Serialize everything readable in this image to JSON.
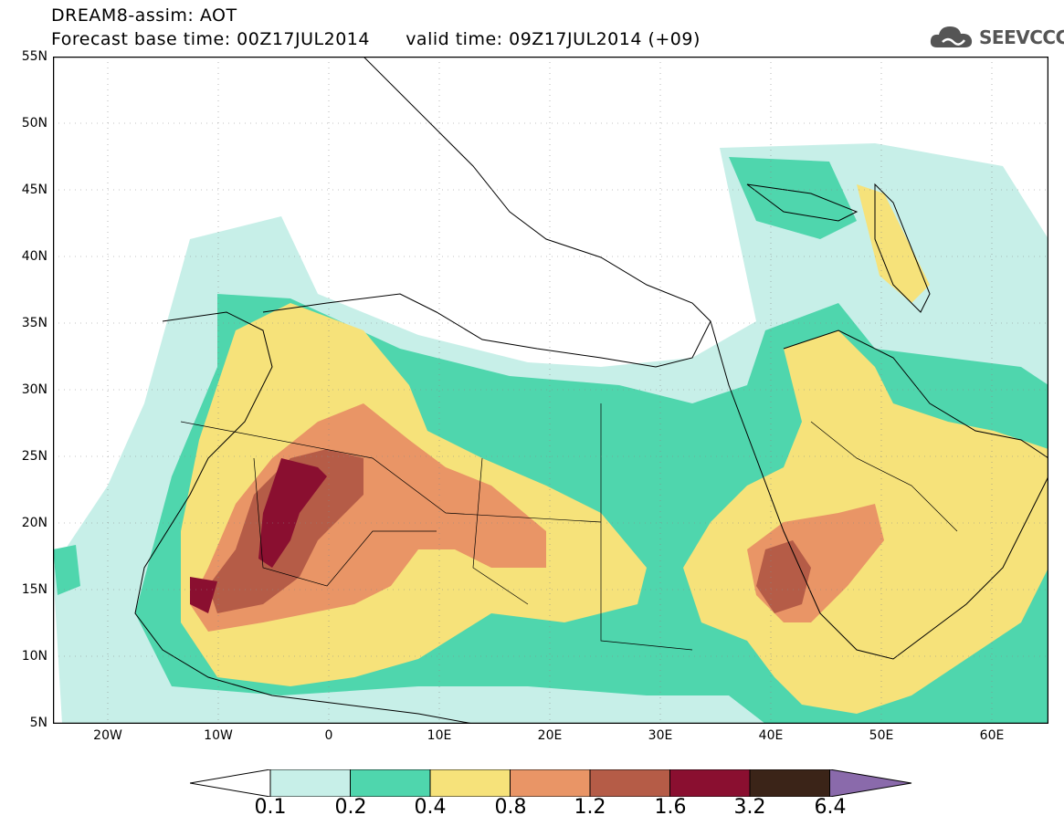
{
  "title": {
    "line1": "DREAM8-assim: AOT",
    "line2": "Forecast base time: 00Z17JUL2014      valid time: 09Z17JUL2014 (+09)"
  },
  "logo": {
    "text": "SEEVCCC",
    "icon": "cloud-icon"
  },
  "map": {
    "lon_range": [
      -25,
      65
    ],
    "lat_range": [
      5,
      55
    ],
    "lat_labels": [
      "55N",
      "50N",
      "45N",
      "40N",
      "35N",
      "30N",
      "25N",
      "20N",
      "15N",
      "10N",
      "5N"
    ],
    "lon_labels": [
      "20W",
      "10W",
      "0",
      "10E",
      "20E",
      "30E",
      "40E",
      "50E",
      "60E"
    ]
  },
  "colorbar": {
    "levels": [
      "0.1",
      "0.2",
      "0.4",
      "0.8",
      "1.2",
      "1.6",
      "3.2",
      "6.4"
    ],
    "colors": [
      "#ffffff",
      "#c7efe8",
      "#4fd6ad",
      "#f6e27a",
      "#e99566",
      "#b55c47",
      "#8a0f30",
      "#3b2418",
      "#8a6aab"
    ]
  }
}
